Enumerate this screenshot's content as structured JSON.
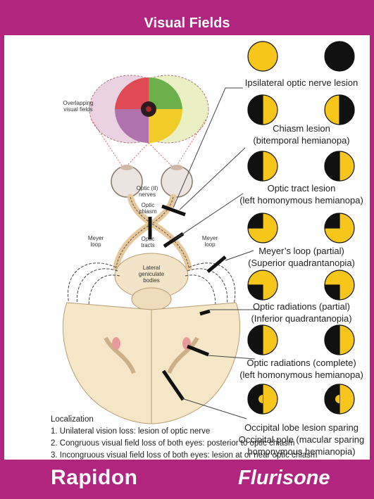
{
  "header": {
    "title": "Visual Fields"
  },
  "diagram_labels": {
    "overlapping": [
      "Overlapping",
      "visual fields"
    ],
    "optic_nerves": [
      "Optic (II)",
      "nerves"
    ],
    "optic_chiasm": [
      "Optic",
      "chiasm"
    ],
    "optic_tracts": [
      "Optic",
      "tracts"
    ],
    "meyer_left": [
      "Meyer",
      "loop"
    ],
    "meyer_right": [
      "Meyer",
      "loop"
    ],
    "lgb": [
      "Lateral",
      "geniculate",
      "bodies"
    ]
  },
  "lesions": [
    {
      "caption": [
        "Ipsilateral optic nerve lesion"
      ]
    },
    {
      "caption": [
        "Chiasm lesion",
        "(bitemporal hemianopa)"
      ]
    },
    {
      "caption": [
        "Optic tract lesion",
        "(left homonymous hemianopa)"
      ]
    },
    {
      "caption": [
        "Meyer’s loop (partial)",
        "(Superior quadrantanopia)"
      ]
    },
    {
      "caption": [
        "Optic radiations (partial)",
        "(Inferior quadrantanopia)"
      ]
    },
    {
      "caption": [
        "Optic radiations (complete)",
        "(left homonymous hemianopa)"
      ]
    },
    {
      "caption": [
        "Occipital lobe lesion sparing",
        "Occipital pole (macular sparing",
        "homonymous hemianopia)"
      ]
    }
  ],
  "localization": {
    "title": "Localization",
    "items": [
      "1. Unilateral vision loss: lesion of optic nerve",
      "2. Congruous visual field loss of both eyes: posterior to optic chiasm",
      "3. Incongruous visual field loss of both eyes: lesion at or near optic chiasm"
    ]
  },
  "footer": {
    "left_brand": "Rapidon",
    "right_brand": "Flurisone"
  },
  "colors": {
    "brand": "#b2257f",
    "field_seen": "#f6c61a",
    "field_lost": "#111111"
  }
}
